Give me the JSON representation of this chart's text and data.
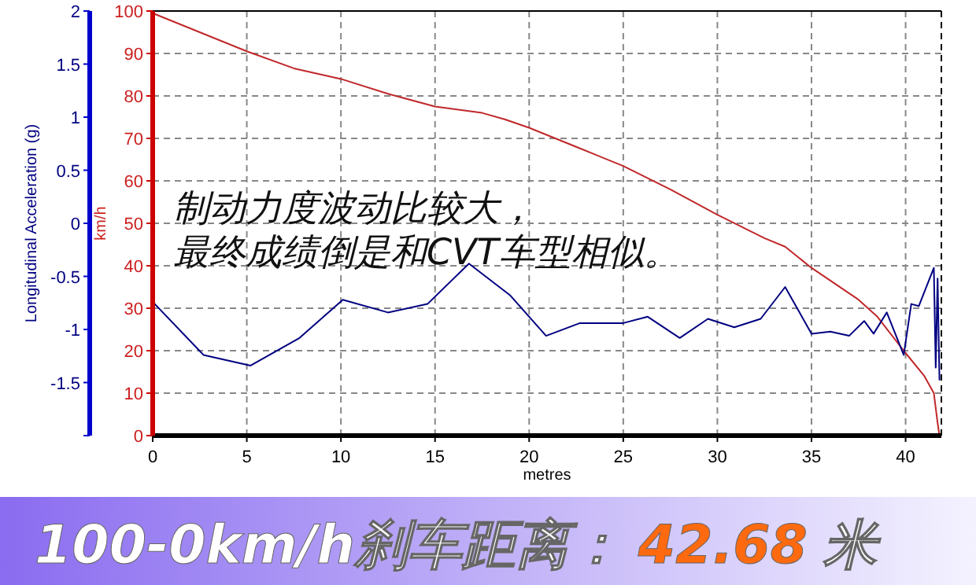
{
  "chart_data": {
    "type": "line",
    "xlabel": "metres",
    "ylabel": "km/h",
    "y2label": "Longitudinal Acceleration (g)",
    "xlim": [
      0,
      41.9
    ],
    "xticks": [
      0,
      5,
      10,
      15,
      20,
      25,
      30,
      35,
      40
    ],
    "ylim": [
      0,
      100
    ],
    "yticks": [
      0,
      10,
      20,
      30,
      40,
      50,
      60,
      70,
      80,
      90,
      100
    ],
    "y2lim": [
      -2,
      2
    ],
    "y2ticks": [
      {
        "value": -2,
        "label": null
      },
      -1.5,
      -1,
      -0.5,
      0,
      0.5,
      1,
      1.5,
      2
    ],
    "grid": true,
    "line_style": "solid",
    "marker": "none",
    "series": [
      {
        "color": "#c0282a",
        "x": [
          0,
          2.5,
          5,
          7.5,
          10,
          12.5,
          15,
          17.5,
          18.7,
          20,
          22.5,
          25,
          27.5,
          30,
          32.5,
          33.6,
          35,
          37.5,
          38.5,
          39.9,
          41,
          41.5,
          41.7,
          41.8
        ],
        "values": [
          99.5,
          95,
          90.5,
          86.5,
          84,
          80.5,
          77.5,
          76,
          74.5,
          72.5,
          68,
          63.5,
          58,
          52,
          46.5,
          44.5,
          39.5,
          32,
          28,
          20,
          14,
          10,
          3,
          0
        ]
      },
      {
        "color": "#000080",
        "axis": "y2",
        "x": [
          0,
          2.7,
          5.2,
          7.8,
          10.1,
          12.5,
          14.6,
          16.8,
          19,
          20.9,
          22.7,
          25,
          26.3,
          28,
          29.5,
          30.9,
          32.3,
          33.6,
          35,
          36,
          37,
          37.8,
          38.3,
          39,
          39.9,
          40.3,
          40.7,
          41.5,
          41.6,
          41.7,
          41.8
        ],
        "values": [
          -0.74,
          -1.24,
          -1.34,
          -1.08,
          -0.72,
          -0.84,
          -0.76,
          -0.38,
          -0.68,
          -1.06,
          -0.94,
          -0.94,
          -0.88,
          -1.08,
          -0.9,
          -0.98,
          -0.9,
          -0.6,
          -1.04,
          -1.02,
          -1.06,
          -0.92,
          -1.04,
          -0.84,
          -1.24,
          -0.76,
          -0.78,
          -0.42,
          -1.36,
          -0.52,
          -1.48
        ]
      }
    ],
    "annotations": [
      "制动力度波动比较大，",
      "最终成绩倒是和CVT车型相似。",
      "100-0km/h刹车距离：",
      "42.68",
      "米"
    ]
  }
}
